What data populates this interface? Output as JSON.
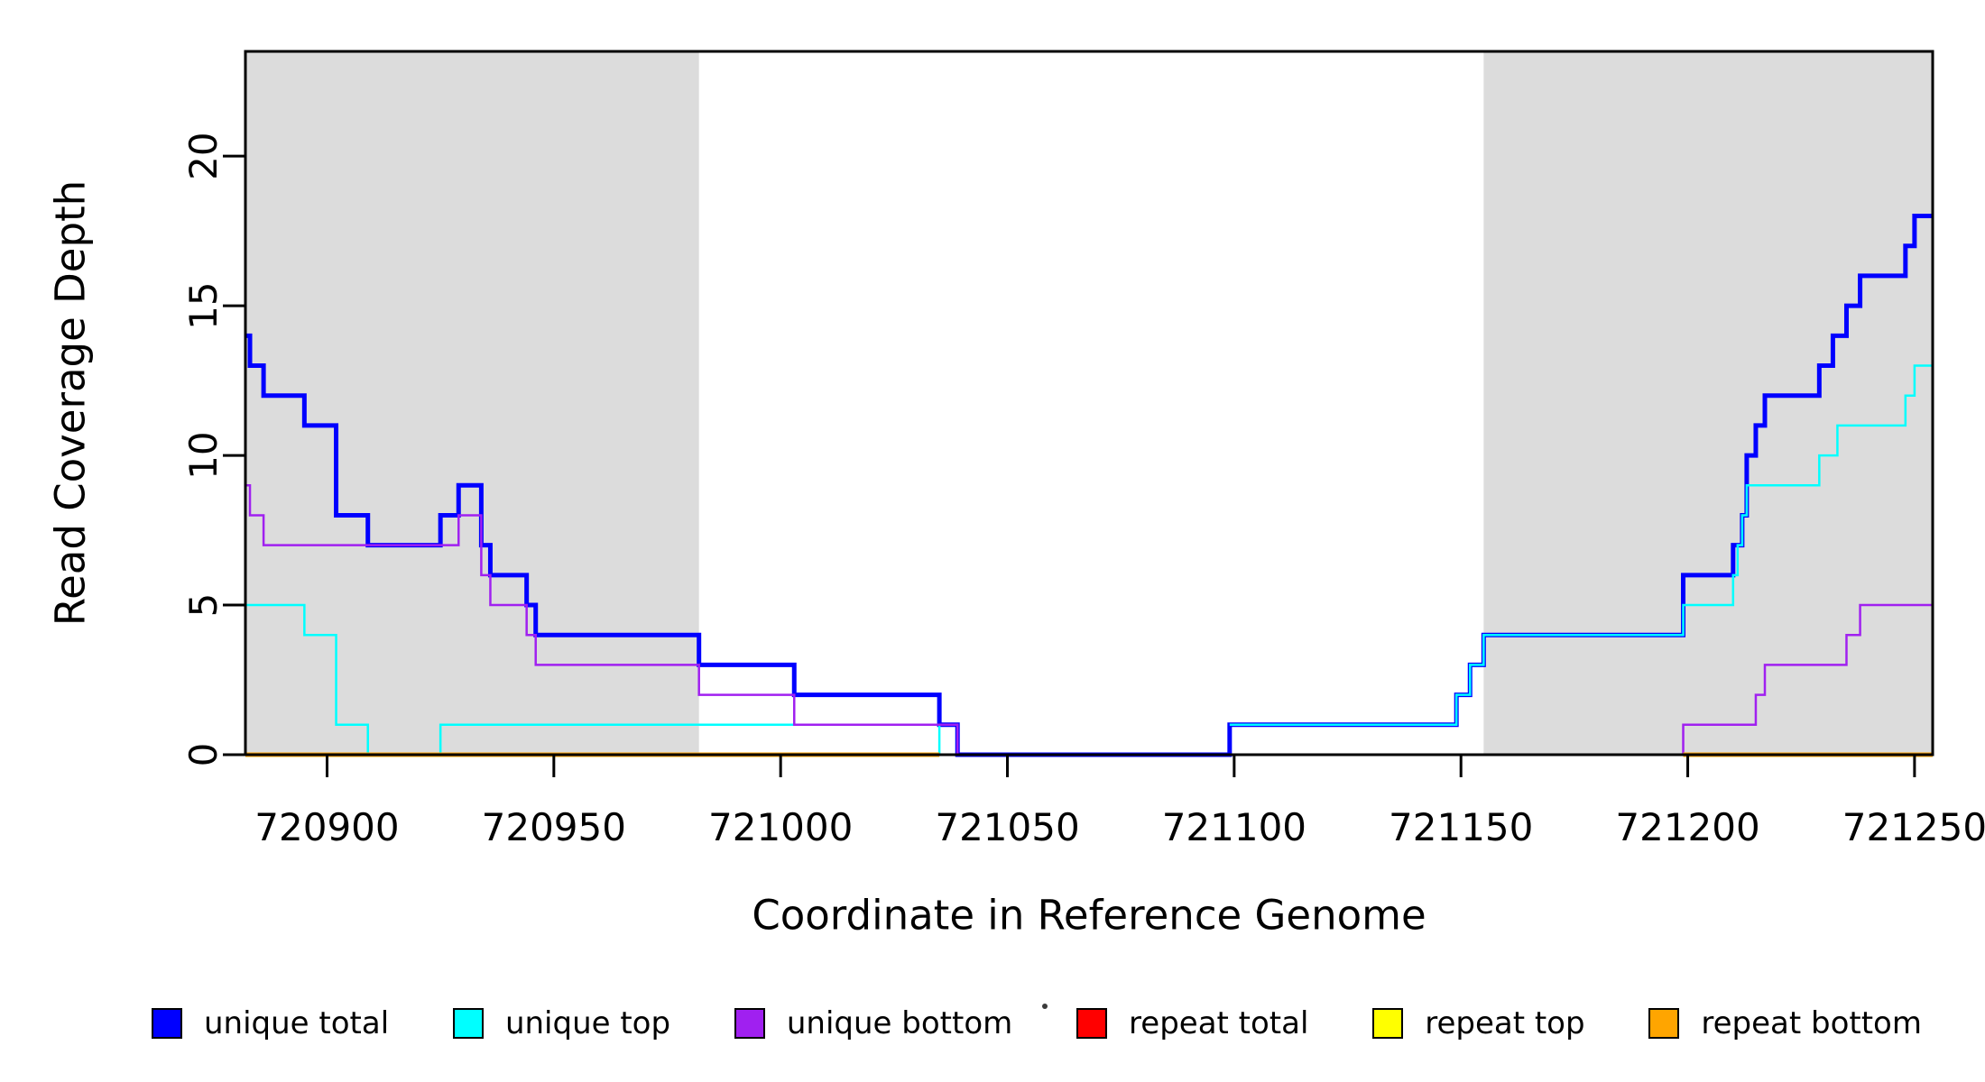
{
  "figure": {
    "background": "#FFFFFF"
  },
  "chart_data": {
    "type": "line",
    "subtype": "step",
    "title": "",
    "xlabel": "Coordinate in Reference Genome",
    "ylabel": "Read Coverage Depth",
    "xlim": [
      720882,
      721254
    ],
    "ylim": [
      0,
      23.5
    ],
    "x_ticks": [
      720900,
      720950,
      721000,
      721050,
      721100,
      721150,
      721200,
      721250
    ],
    "y_ticks": [
      0,
      5,
      10,
      15,
      20
    ],
    "grid": false,
    "legend_position": "bottom",
    "shade_color": "#DCDCDC",
    "shaded_regions": [
      {
        "x0": 720882,
        "x1": 720982
      },
      {
        "x0": 721155,
        "x1": 721254
      }
    ],
    "series": [
      {
        "name": "unique total",
        "color": "#0000FF",
        "line_width": 5,
        "segments": [
          [
            [
              720882,
              14
            ],
            [
              720883,
              13
            ],
            [
              720886,
              12
            ],
            [
              720895,
              11
            ],
            [
              720902,
              8
            ],
            [
              720909,
              7
            ],
            [
              720925,
              8
            ],
            [
              720929,
              9
            ],
            [
              720934,
              7
            ],
            [
              720936,
              6
            ],
            [
              720944,
              5
            ],
            [
              720946,
              4
            ],
            [
              720982,
              3
            ],
            [
              721003,
              2
            ],
            [
              721035,
              1
            ],
            [
              721039,
              0
            ],
            [
              721099,
              1
            ],
            [
              721149,
              2
            ],
            [
              721152,
              3
            ],
            [
              721155,
              4
            ],
            [
              721199,
              6
            ],
            [
              721210,
              7
            ],
            [
              721212,
              8
            ],
            [
              721213,
              10
            ],
            [
              721215,
              11
            ],
            [
              721217,
              12
            ],
            [
              721229,
              13
            ],
            [
              721232,
              14
            ],
            [
              721235,
              15
            ],
            [
              721238,
              16
            ],
            [
              721248,
              17
            ],
            [
              721250,
              18
            ],
            [
              721254,
              18
            ]
          ]
        ]
      },
      {
        "name": "unique top",
        "color": "#00FFFF",
        "line_width": 2.5,
        "segments": [
          [
            [
              720882,
              5
            ],
            [
              720895,
              4
            ],
            [
              720902,
              1
            ],
            [
              720909,
              0
            ],
            [
              720925,
              1
            ],
            [
              721035,
              0
            ],
            [
              721039,
              0
            ]
          ],
          [
            [
              721099,
              1
            ],
            [
              721149,
              2
            ],
            [
              721152,
              3
            ],
            [
              721155,
              4
            ],
            [
              721199,
              5
            ],
            [
              721210,
              6
            ],
            [
              721211,
              7
            ],
            [
              721212,
              8
            ],
            [
              721213,
              9
            ],
            [
              721229,
              10
            ],
            [
              721233,
              11
            ],
            [
              721248,
              12
            ],
            [
              721250,
              13
            ],
            [
              721254,
              13
            ]
          ]
        ]
      },
      {
        "name": "unique bottom",
        "color": "#A020F0",
        "line_width": 2.5,
        "segments": [
          [
            [
              720882,
              9
            ],
            [
              720883,
              8
            ],
            [
              720886,
              7
            ],
            [
              720929,
              8
            ],
            [
              720934,
              6
            ],
            [
              720936,
              5
            ],
            [
              720944,
              4
            ],
            [
              720946,
              3
            ],
            [
              720982,
              2
            ],
            [
              721003,
              1
            ],
            [
              721039,
              0
            ],
            [
              721199,
              1
            ],
            [
              721215,
              2
            ],
            [
              721217,
              3
            ],
            [
              721235,
              4
            ],
            [
              721238,
              5
            ],
            [
              721254,
              5
            ]
          ]
        ]
      },
      {
        "name": "repeat total",
        "color": "#FF0000",
        "line_width": 2,
        "segments": [
          [
            [
              721099,
              0
            ],
            [
              721199,
              0
            ]
          ]
        ]
      },
      {
        "name": "repeat top",
        "color": "#FFFF00",
        "line_width": 2,
        "segments": [
          [
            [
              721199,
              0
            ],
            [
              721254,
              0
            ]
          ]
        ]
      },
      {
        "name": "repeat bottom",
        "color": "#FFA500",
        "line_width": 5,
        "segments": [
          [
            [
              720882,
              0
            ],
            [
              721035,
              0
            ]
          ],
          [
            [
              721199,
              0
            ],
            [
              721254,
              0
            ]
          ]
        ]
      }
    ],
    "legend": [
      {
        "label": "unique total",
        "color": "#0000FF"
      },
      {
        "label": "unique top",
        "color": "#00FFFF"
      },
      {
        "label": "unique bottom",
        "color": "#A020F0"
      },
      {
        "label": "repeat total",
        "color": "#FF0000"
      },
      {
        "label": "repeat top",
        "color": "#FFFF00"
      },
      {
        "label": "repeat bottom",
        "color": "#FFA500"
      }
    ]
  }
}
